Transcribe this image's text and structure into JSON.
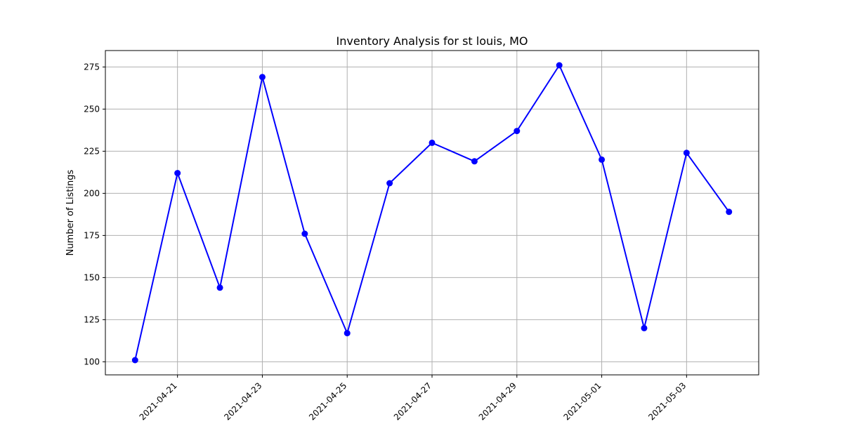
{
  "chart_data": {
    "type": "line",
    "title": "Inventory Analysis for st louis, MO",
    "xlabel": "",
    "ylabel": "Number of Listings",
    "x": [
      "2021-04-20",
      "2021-04-21",
      "2021-04-22",
      "2021-04-23",
      "2021-04-24",
      "2021-04-25",
      "2021-04-26",
      "2021-04-27",
      "2021-04-28",
      "2021-04-29",
      "2021-04-30",
      "2021-05-01",
      "2021-05-02",
      "2021-05-03",
      "2021-05-04"
    ],
    "series": [
      {
        "values": [
          101,
          212,
          144,
          269,
          176,
          117,
          206,
          230,
          219,
          237,
          276,
          220,
          120,
          224,
          189
        ]
      }
    ],
    "x_ticks": [
      "2021-04-21",
      "2021-04-23",
      "2021-04-25",
      "2021-04-27",
      "2021-04-29",
      "2021-05-01",
      "2021-05-03"
    ],
    "y_ticks": [
      100,
      125,
      150,
      175,
      200,
      225,
      250,
      275
    ],
    "xlim": [
      "2021-04-19T07:12",
      "2021-05-04T16:48"
    ],
    "ylim": [
      92.25,
      284.75
    ],
    "grid": true,
    "x_tick_rotation_deg": 45,
    "colors": {
      "line": "#0000ff",
      "marker": "#0000ff",
      "grid": "#b0b0b0",
      "axis": "#000000"
    }
  }
}
